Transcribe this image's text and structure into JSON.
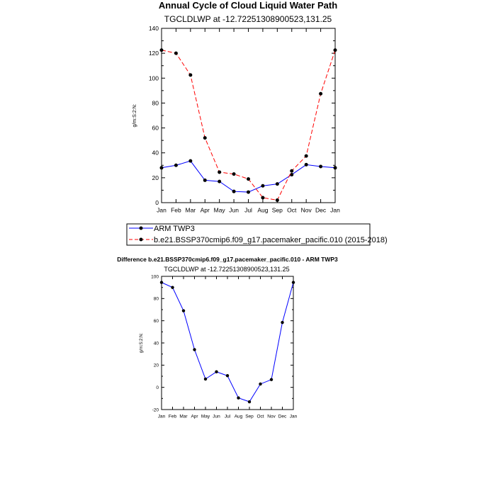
{
  "chart_data": [
    {
      "type": "line",
      "title": "Annual Cycle of Cloud Liquid Water Path",
      "subtitle": "TGCLDLWP at -12.72251308900523,131.25",
      "ylabel": "g/m:S:2:N:",
      "ylim": [
        0,
        140
      ],
      "yticks": [
        0,
        20,
        40,
        60,
        80,
        100,
        120,
        140
      ],
      "categories": [
        "Jan",
        "Feb",
        "Mar",
        "Apr",
        "May",
        "Jun",
        "Jul",
        "Aug",
        "Sep",
        "Oct",
        "Nov",
        "Dec",
        "Jan"
      ],
      "legend_placement": "bottom",
      "series": [
        {
          "name": "ARM TWP3",
          "color": "#0000ff",
          "dash": "solid",
          "values": [
            28,
            30,
            33.5,
            18,
            17,
            9,
            8.5,
            13.5,
            15,
            22.5,
            30.5,
            29,
            28
          ]
        },
        {
          "name": "b.e21.BSSP370cmip6.f09_g17.pacemaker_pacific.010 (2015-2018)",
          "color": "#ff0000",
          "dash": "dashed",
          "values": [
            122.5,
            120,
            102.5,
            52,
            24.5,
            23,
            19,
            4,
            2,
            25.5,
            37.5,
            87.5,
            122.5
          ]
        }
      ]
    },
    {
      "type": "line",
      "title": "Difference b.e21.BSSP370cmip6.f09_g17.pacemaker_pacific.010 - ARM TWP3",
      "subtitle": "TGCLDLWP at -12.72251308900523,131.25",
      "ylabel": "g/m:S:2:N:",
      "ylim": [
        -20,
        100
      ],
      "yticks": [
        -20,
        0,
        20,
        40,
        60,
        80,
        100
      ],
      "categories": [
        "Jan",
        "Feb",
        "Mar",
        "Apr",
        "May",
        "Jun",
        "Jul",
        "Aug",
        "Sep",
        "Oct",
        "Nov",
        "Dec",
        "Jan"
      ],
      "series": [
        {
          "color": "#0000ff",
          "dash": "solid",
          "values": [
            94.5,
            90,
            69,
            34,
            7.5,
            14,
            10.5,
            -9.5,
            -13,
            3,
            7,
            58.5,
            94.5
          ]
        }
      ]
    }
  ]
}
